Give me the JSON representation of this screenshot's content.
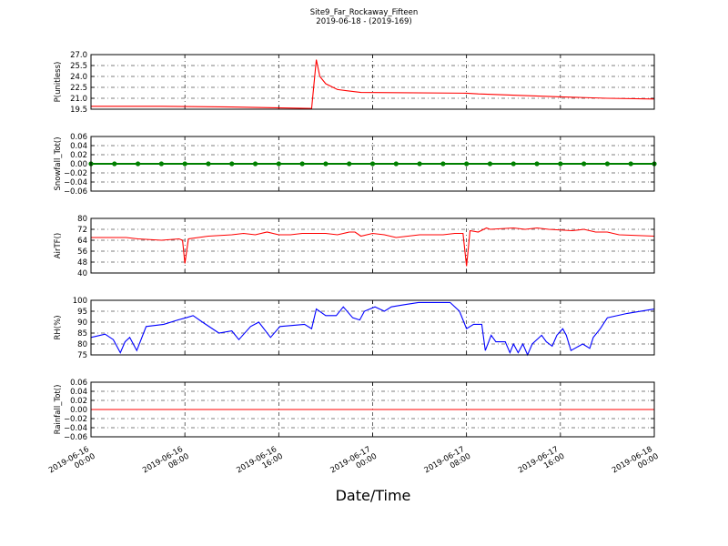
{
  "chart_data": [
    {
      "type": "line",
      "title": "Site9_Far_Rockaway_Fifteen",
      "subtitle": "2019-06-18 - (2019-169)",
      "ylabel": "P(unitless)",
      "xlim": [
        "2019-06-16 00:00",
        "2019-06-18 00:00"
      ],
      "xticks": [
        "2019-06-16 00:00",
        "2019-06-16 08:00",
        "2019-06-16 16:00",
        "2019-06-17 00:00",
        "2019-06-17 08:00",
        "2019-06-17 16:00",
        "2019-06-18 00:00"
      ],
      "ylim": [
        19.5,
        27
      ],
      "yticks": [
        19.5,
        {
          "value": 21,
          "label": "21.0"
        },
        22.5,
        {
          "value": 24,
          "label": "24.0"
        },
        25.5,
        {
          "value": 27,
          "label": "27.0"
        }
      ],
      "grid": true,
      "x": [
        "2019-06-16 00:00",
        "2019-06-16 06:00",
        "2019-06-16 12:00",
        "2019-06-16 18:48",
        "2019-06-16 19:12",
        "2019-06-16 19:30",
        "2019-06-16 20:00",
        "2019-06-16 21:00",
        "2019-06-16 23:00",
        "2019-06-17 08:00",
        "2019-06-17 09:00",
        "2019-06-17 16:00",
        "2019-06-17 20:00",
        "2019-06-18 00:00"
      ],
      "series": [
        {
          "color": "#ff0000",
          "values": [
            19.9,
            19.9,
            19.8,
            19.6,
            26.3,
            24.0,
            23.0,
            22.2,
            21.8,
            21.7,
            21.6,
            21.2,
            21.0,
            20.9
          ]
        }
      ]
    },
    {
      "type": "line",
      "ylabel": "Snowfall_Tot()",
      "xlim": [
        "2019-06-16 00:00",
        "2019-06-18 00:00"
      ],
      "xticks": [
        "2019-06-16 00:00",
        "2019-06-16 08:00",
        "2019-06-16 16:00",
        "2019-06-17 00:00",
        "2019-06-17 08:00",
        "2019-06-17 16:00",
        "2019-06-18 00:00"
      ],
      "ylim": [
        -0.06,
        0.06
      ],
      "yticks": [
        {
          "value": -0.06,
          "label": "−0.06"
        },
        {
          "value": -0.04,
          "label": "−0.04"
        },
        {
          "value": -0.02,
          "label": "−0.02"
        },
        {
          "value": 0,
          "label": "0.00"
        },
        0.02,
        0.04,
        0.06
      ],
      "grid": true,
      "markers": true,
      "x": [
        "2019-06-16 00:00",
        "2019-06-16 02:00",
        "2019-06-16 04:00",
        "2019-06-16 06:00",
        "2019-06-16 08:00",
        "2019-06-16 10:00",
        "2019-06-16 12:00",
        "2019-06-16 14:00",
        "2019-06-16 16:00",
        "2019-06-16 18:00",
        "2019-06-16 20:00",
        "2019-06-16 22:00",
        "2019-06-17 00:00",
        "2019-06-17 02:00",
        "2019-06-17 04:00",
        "2019-06-17 06:00",
        "2019-06-17 08:00",
        "2019-06-17 10:00",
        "2019-06-17 12:00",
        "2019-06-17 14:00",
        "2019-06-17 16:00",
        "2019-06-17 18:00",
        "2019-06-17 20:00",
        "2019-06-17 22:00",
        "2019-06-18 00:00"
      ],
      "series": [
        {
          "color": "#008000",
          "values": [
            0,
            0,
            0,
            0,
            0,
            0,
            0,
            0,
            0,
            0,
            0,
            0,
            0,
            0,
            0,
            0,
            0,
            0,
            0,
            0,
            0,
            0,
            0,
            0,
            0
          ]
        }
      ]
    },
    {
      "type": "line",
      "ylabel": "AirTF()",
      "xlim": [
        "2019-06-16 00:00",
        "2019-06-18 00:00"
      ],
      "xticks": [
        "2019-06-16 00:00",
        "2019-06-16 08:00",
        "2019-06-16 16:00",
        "2019-06-17 00:00",
        "2019-06-17 08:00",
        "2019-06-17 16:00",
        "2019-06-18 00:00"
      ],
      "ylim": [
        40,
        80
      ],
      "yticks": [
        40,
        48,
        56,
        64,
        72,
        80
      ],
      "grid": true,
      "x": [
        "2019-06-16 00:00",
        "2019-06-16 03:00",
        "2019-06-16 04:00",
        "2019-06-16 06:00",
        "2019-06-16 07:30",
        "2019-06-16 07:48",
        "2019-06-16 08:00",
        "2019-06-16 08:18",
        "2019-06-16 10:00",
        "2019-06-16 12:00",
        "2019-06-16 13:00",
        "2019-06-16 14:00",
        "2019-06-16 15:00",
        "2019-06-16 16:00",
        "2019-06-16 17:00",
        "2019-06-16 18:00",
        "2019-06-16 20:00",
        "2019-06-16 21:00",
        "2019-06-16 22:00",
        "2019-06-16 22:30",
        "2019-06-16 23:00",
        "2019-06-17 00:00",
        "2019-06-17 01:00",
        "2019-06-17 02:00",
        "2019-06-17 03:00",
        "2019-06-17 04:00",
        "2019-06-17 06:00",
        "2019-06-17 07:00",
        "2019-06-17 07:42",
        "2019-06-17 08:00",
        "2019-06-17 08:18",
        "2019-06-17 09:00",
        "2019-06-17 09:42",
        "2019-06-17 10:00",
        "2019-06-17 12:00",
        "2019-06-17 13:00",
        "2019-06-17 14:00",
        "2019-06-17 15:00",
        "2019-06-17 17:00",
        "2019-06-17 18:00",
        "2019-06-17 19:00",
        "2019-06-17 20:00",
        "2019-06-17 21:00",
        "2019-06-18 00:00"
      ],
      "series": [
        {
          "color": "#ff0000",
          "values": [
            66,
            66,
            65,
            64,
            65,
            64,
            47,
            65,
            67,
            68,
            69,
            68,
            70,
            68,
            68,
            69,
            69,
            68,
            70,
            70,
            67,
            69,
            68,
            66,
            67,
            68,
            68,
            69,
            69,
            45,
            71,
            70,
            73,
            72,
            73,
            72,
            73,
            72,
            71,
            72,
            70,
            70,
            68,
            67
          ]
        }
      ]
    },
    {
      "type": "line",
      "ylabel": "RH(%)",
      "xlim": [
        "2019-06-16 00:00",
        "2019-06-18 00:00"
      ],
      "xticks": [
        "2019-06-16 00:00",
        "2019-06-16 08:00",
        "2019-06-16 16:00",
        "2019-06-17 00:00",
        "2019-06-17 08:00",
        "2019-06-17 16:00",
        "2019-06-18 00:00"
      ],
      "ylim": [
        75,
        100
      ],
      "yticks": [
        75,
        80,
        85,
        90,
        95,
        100
      ],
      "grid": true,
      "x": [
        "2019-06-16 00:00",
        "2019-06-16 01:12",
        "2019-06-16 01:54",
        "2019-06-16 02:30",
        "2019-06-16 02:54",
        "2019-06-16 03:18",
        "2019-06-16 03:54",
        "2019-06-16 04:42",
        "2019-06-16 06:12",
        "2019-06-16 07:24",
        "2019-06-16 08:06",
        "2019-06-16 08:42",
        "2019-06-16 09:30",
        "2019-06-16 10:54",
        "2019-06-16 12:00",
        "2019-06-16 12:36",
        "2019-06-16 13:36",
        "2019-06-16 14:18",
        "2019-06-16 15:18",
        "2019-06-16 16:06",
        "2019-06-16 18:12",
        "2019-06-16 18:48",
        "2019-06-16 19:12",
        "2019-06-16 20:00",
        "2019-06-16 20:54",
        "2019-06-16 21:30",
        "2019-06-16 22:18",
        "2019-06-16 22:54",
        "2019-06-16 23:18",
        "2019-06-17 00:12",
        "2019-06-17 01:00",
        "2019-06-17 01:36",
        "2019-06-17 02:42",
        "2019-06-17 03:54",
        "2019-06-17 05:48",
        "2019-06-17 06:36",
        "2019-06-17 07:24",
        "2019-06-17 08:00",
        "2019-06-17 08:36",
        "2019-06-17 09:18",
        "2019-06-17 09:36",
        "2019-06-17 10:06",
        "2019-06-17 10:30",
        "2019-06-17 11:18",
        "2019-06-17 11:42",
        "2019-06-17 12:00",
        "2019-06-17 12:24",
        "2019-06-17 12:48",
        "2019-06-17 13:12",
        "2019-06-17 13:36",
        "2019-06-17 14:24",
        "2019-06-17 14:48",
        "2019-06-17 15:18",
        "2019-06-17 15:42",
        "2019-06-17 16:12",
        "2019-06-17 16:30",
        "2019-06-17 16:54",
        "2019-06-17 17:54",
        "2019-06-17 18:30",
        "2019-06-17 18:48",
        "2019-06-17 19:24",
        "2019-06-17 20:00",
        "2019-06-17 21:42",
        "2019-06-18 00:00"
      ],
      "series": [
        {
          "color": "#0000ff",
          "values": [
            83,
            84.5,
            82,
            76,
            81,
            83,
            77,
            88,
            89,
            91,
            92,
            93,
            90,
            85,
            86,
            82,
            88,
            90,
            83,
            88,
            89,
            87,
            96,
            93,
            93,
            97,
            92,
            91,
            95,
            97,
            95,
            97,
            98,
            99,
            99,
            99,
            95,
            87,
            89,
            89,
            77,
            84,
            81,
            81,
            76,
            80,
            76,
            80,
            75,
            80,
            84,
            81,
            79,
            84,
            87,
            84,
            77,
            80,
            78,
            83,
            87,
            92,
            94,
            96
          ]
        }
      ]
    },
    {
      "type": "line",
      "ylabel": "Rainfall_Tot()",
      "xlabel": "Date/Time",
      "xlim": [
        "2019-06-16 00:00",
        "2019-06-18 00:00"
      ],
      "xticks": [
        "2019-06-16 00:00",
        "2019-06-16 08:00",
        "2019-06-16 16:00",
        "2019-06-17 00:00",
        "2019-06-17 08:00",
        "2019-06-17 16:00",
        "2019-06-18 00:00"
      ],
      "ylim": [
        -0.06,
        0.06
      ],
      "yticks": [
        {
          "value": -0.06,
          "label": "−0.06"
        },
        {
          "value": -0.04,
          "label": "−0.04"
        },
        {
          "value": -0.02,
          "label": "−0.02"
        },
        {
          "value": 0,
          "label": "0.00"
        },
        0.02,
        0.04,
        0.06
      ],
      "grid": true,
      "x": [
        "2019-06-16 00:00",
        "2019-06-18 00:00"
      ],
      "series": [
        {
          "color": "#ff0000",
          "values": [
            0,
            0
          ]
        }
      ]
    }
  ]
}
